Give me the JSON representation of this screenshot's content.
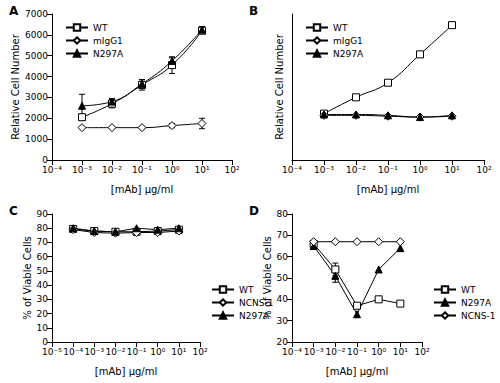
{
  "chart_data": [
    {
      "type": "line",
      "title": "A",
      "log": "x",
      "grid": false,
      "legend": "upper left",
      "x_label": "[mAb] μg/ml",
      "y_label": "Relative Cell Number",
      "x": [
        0.001,
        0.01,
        0.1,
        1,
        10
      ],
      "xlim": [
        0.0001,
        100
      ],
      "xticks": [
        {
          "value": 0.0001,
          "label": "10⁻⁴"
        },
        {
          "value": 0.001,
          "label": "10⁻³"
        },
        {
          "value": 0.01,
          "label": "10⁻²"
        },
        {
          "value": 0.1,
          "label": "10⁻¹"
        },
        {
          "value": 1,
          "label": "10⁰"
        },
        {
          "value": 10,
          "label": "10¹"
        },
        {
          "value": 100,
          "label": "10²"
        }
      ],
      "ylim": [
        0,
        7000
      ],
      "yticks": [
        0,
        1000,
        2000,
        3000,
        4000,
        5000,
        6000,
        7000
      ],
      "series": [
        {
          "name": "WT",
          "color": "#000000",
          "marker": "open square",
          "line_style": "smooth",
          "values": [
            2050,
            2700,
            3600,
            4550,
            6200
          ],
          "errors": [
            150,
            200,
            250,
            400,
            150
          ]
        },
        {
          "name": "mIgG1",
          "color": "#000000",
          "marker": "open diamond",
          "line_style": "smooth",
          "values": [
            1550,
            1550,
            1550,
            1650,
            1750
          ],
          "errors": [
            50,
            50,
            50,
            100,
            250
          ]
        },
        {
          "name": "N297A",
          "color": "#000000",
          "marker": "filled triangle",
          "line_style": "smooth",
          "values": [
            2600,
            2800,
            3650,
            4750,
            6250
          ],
          "errors": [
            550,
            150,
            200,
            150,
            150
          ]
        }
      ]
    },
    {
      "type": "line",
      "title": "B",
      "log": "x",
      "grid": false,
      "legend": "upper left",
      "tick_labels": "x",
      "x_label": "[mAb] μg/ml",
      "y_label": "Relative Cell Number",
      "x": [
        0.001,
        0.01,
        0.1,
        1,
        10
      ],
      "xlim": [
        0.0001,
        100
      ],
      "xticks": [
        {
          "value": 0.0001,
          "label": "10⁻⁴"
        },
        {
          "value": 0.001,
          "label": "10⁻³"
        },
        {
          "value": 0.01,
          "label": "10⁻²"
        },
        {
          "value": 0.1,
          "label": "10⁻¹"
        },
        {
          "value": 1,
          "label": "10⁰"
        },
        {
          "value": 10,
          "label": "10¹"
        },
        {
          "value": 100,
          "label": "10²"
        }
      ],
      "ylim": [
        0,
        8500
      ],
      "series": [
        {
          "name": "WT",
          "color": "#000000",
          "marker": "open square",
          "line_style": "smooth",
          "values": [
            2700,
            3650,
            4500,
            6150,
            7850
          ]
        },
        {
          "name": "mIgG1",
          "color": "#000000",
          "marker": "open diamond",
          "line_style": "smooth",
          "values": [
            2600,
            2600,
            2550,
            2500,
            2550
          ]
        },
        {
          "name": "N297A",
          "color": "#000000",
          "marker": "filled triangle",
          "line_style": "smooth",
          "values": [
            2650,
            2650,
            2600,
            2500,
            2600
          ]
        }
      ]
    },
    {
      "type": "line",
      "title": "C",
      "log": "x",
      "grid": false,
      "legend": "right",
      "x_label": "[mAb] μg/ml",
      "y_label": "% of Viable Cells",
      "x": [
        0.0001,
        0.001,
        0.01,
        0.1,
        1,
        10
      ],
      "xlim": [
        1e-05,
        100
      ],
      "xticks": [
        {
          "value": 1e-05,
          "label": "10⁻⁵"
        },
        {
          "value": 0.0001,
          "label": "10⁻⁴"
        },
        {
          "value": 0.001,
          "label": "10⁻³"
        },
        {
          "value": 0.01,
          "label": "10⁻²"
        },
        {
          "value": 0.1,
          "label": "10⁻¹"
        },
        {
          "value": 1,
          "label": "10⁰"
        },
        {
          "value": 10,
          "label": "10¹"
        },
        {
          "value": 100,
          "label": "10²"
        }
      ],
      "ylim": [
        0,
        90
      ],
      "yticks": [
        0,
        10,
        20,
        30,
        40,
        50,
        60,
        70,
        80,
        90
      ],
      "series": [
        {
          "name": "WT",
          "color": "#000000",
          "marker": "open square",
          "line_style": "solid",
          "values": [
            79.5,
            78,
            77.5,
            77.5,
            78,
            79
          ]
        },
        {
          "name": "NCNS-1",
          "color": "#000000",
          "marker": "open diamond",
          "line_style": "solid",
          "values": [
            79,
            77,
            76.5,
            77,
            77,
            78
          ]
        },
        {
          "name": "N297A",
          "color": "#000000",
          "marker": "filled triangle",
          "line_style": "solid",
          "values": [
            80,
            78,
            77.5,
            80,
            79,
            80
          ]
        }
      ]
    },
    {
      "type": "line",
      "title": "D",
      "log": "x",
      "grid": false,
      "legend": "right",
      "x_label": "[mAb] μg/ml",
      "y_label": "% of Viable Cells",
      "x": [
        0.001,
        0.01,
        0.1,
        1,
        10
      ],
      "xlim": [
        0.0001,
        100
      ],
      "xticks": [
        {
          "value": 0.0001,
          "label": "10⁻⁴"
        },
        {
          "value": 0.001,
          "label": "10⁻³"
        },
        {
          "value": 0.01,
          "label": "10⁻²"
        },
        {
          "value": 0.1,
          "label": "10⁻¹"
        },
        {
          "value": 1,
          "label": "10⁰"
        },
        {
          "value": 10,
          "label": "10¹"
        },
        {
          "value": 100,
          "label": "10²"
        }
      ],
      "ylim": [
        20,
        80
      ],
      "yticks": [
        20,
        30,
        40,
        50,
        60,
        70,
        80
      ],
      "series": [
        {
          "name": "WT",
          "color": "#000000",
          "marker": "open square",
          "line_style": "solid",
          "values": [
            66,
            54,
            37,
            40,
            38
          ],
          "errors": [
            null,
            3,
            null,
            null,
            null
          ]
        },
        {
          "name": "N297A",
          "color": "#000000",
          "marker": "filled triangle",
          "line_style": "solid",
          "values": [
            65,
            51,
            33,
            54,
            64
          ],
          "errors": [
            null,
            3,
            null,
            null,
            null
          ]
        },
        {
          "name": "NCNS-1",
          "color": "#000000",
          "marker": "open diamond",
          "line_style": "solid",
          "values": [
            67,
            67,
            67,
            67,
            67
          ]
        }
      ]
    }
  ]
}
